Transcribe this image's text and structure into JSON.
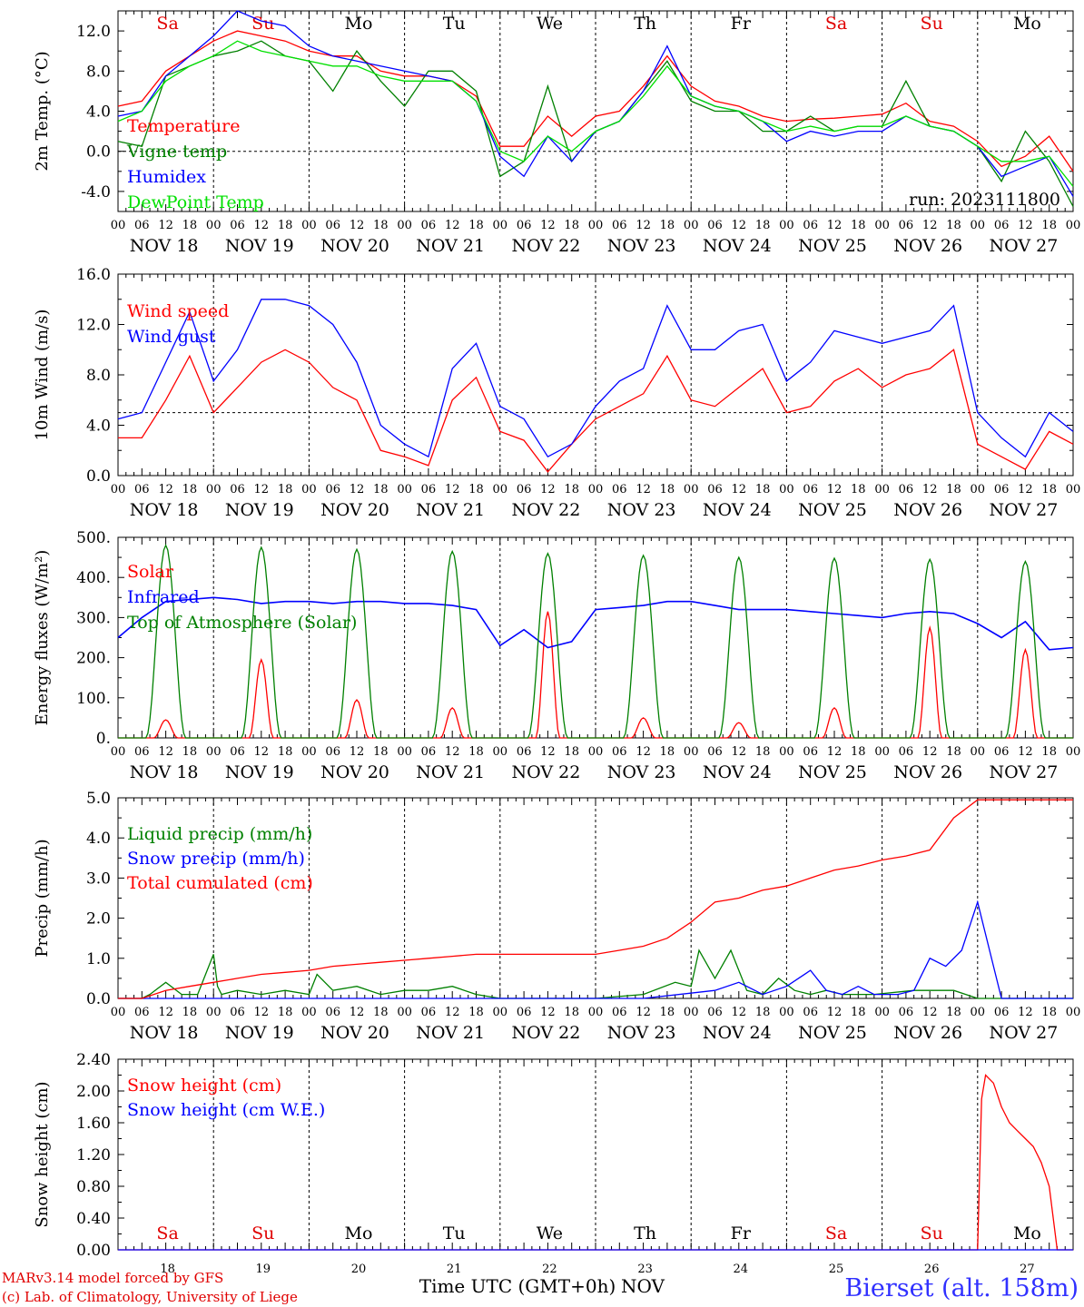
{
  "meta": {
    "run_label": "run: 2023111800",
    "footer_model": "MARv3.14 model forced by GFS",
    "footer_lab": "(c) Lab. of Climatology, University of Liege",
    "x_axis_title": "Time UTC (GMT+0h)",
    "x_axis_month": "NOV",
    "station": "Bierset (alt. 158m)"
  },
  "time_axis": {
    "days": [
      "NOV 18",
      "NOV 19",
      "NOV 20",
      "NOV 21",
      "NOV 22",
      "NOV 23",
      "NOV 24",
      "NOV 25",
      "NOV 26",
      "NOV 27"
    ],
    "hour_ticks": [
      "00",
      "06",
      "12",
      "18"
    ],
    "end_tick": "00",
    "weekday_labels": [
      "Sa",
      "Su",
      "Mo",
      "Tu",
      "We",
      "Th",
      "Fr",
      "Sa",
      "Su",
      "Mo"
    ],
    "weekday_colors": [
      "#e00000",
      "#e00000",
      "#000000",
      "#000000",
      "#000000",
      "#000000",
      "#000000",
      "#e00000",
      "#e00000",
      "#000000"
    ],
    "bottom_day_numbers": [
      "18",
      "19",
      "20",
      "21",
      "22",
      "23",
      "24",
      "25",
      "26",
      "27"
    ]
  },
  "chart_data": [
    {
      "type": "line",
      "ylabel": "2m Temp. (°C)",
      "ylim": [
        -6,
        14
      ],
      "yticks": [
        -4,
        0,
        4,
        8,
        12
      ],
      "ytick_labels": [
        "-4.0",
        "0.0",
        "4.0",
        "8.0",
        "12.0"
      ],
      "reference_line": 0,
      "x_hours": [
        0,
        240
      ],
      "series": [
        {
          "name": "Temperature",
          "color": "#ff0000",
          "x": [
            0,
            6,
            12,
            18,
            24,
            30,
            36,
            42,
            48,
            54,
            60,
            66,
            72,
            78,
            84,
            90,
            96,
            102,
            108,
            114,
            120,
            126,
            132,
            138,
            144,
            150,
            156,
            162,
            168,
            174,
            180,
            186,
            192,
            198,
            204,
            210,
            216,
            222,
            228,
            234,
            240
          ],
          "values": [
            4.5,
            5,
            8,
            9.5,
            11,
            12,
            11.5,
            11,
            10,
            9.5,
            9.5,
            8,
            7.5,
            7.5,
            7,
            5.5,
            0.5,
            0.5,
            3.5,
            1.5,
            3.5,
            4,
            6.5,
            9.5,
            6.5,
            5,
            4.5,
            3.5,
            3,
            3.2,
            3.3,
            3.5,
            3.7,
            4.8,
            3,
            2.5,
            1,
            -1.5,
            -0.5,
            1.5,
            -2
          ]
        },
        {
          "name": "Vigne temp",
          "color": "#008000",
          "x": [
            0,
            6,
            12,
            18,
            24,
            30,
            36,
            42,
            48,
            54,
            60,
            66,
            72,
            78,
            84,
            90,
            96,
            102,
            108,
            114,
            120,
            126,
            132,
            138,
            144,
            150,
            156,
            162,
            168,
            174,
            180,
            186,
            192,
            198,
            204,
            210,
            216,
            222,
            228,
            234,
            240
          ],
          "values": [
            1,
            0.5,
            7.5,
            8.5,
            9.5,
            10,
            11,
            9.5,
            9,
            6,
            10,
            7,
            4.5,
            8,
            8,
            6,
            -2.5,
            -1,
            6.5,
            -1,
            2,
            3,
            6,
            9,
            5,
            4,
            4,
            2,
            2,
            3.5,
            2,
            2.5,
            2.5,
            7,
            2.5,
            2,
            0.5,
            -3,
            2,
            -1,
            -5.5
          ]
        },
        {
          "name": "Humidex",
          "color": "#0000ff",
          "x": [
            0,
            6,
            12,
            18,
            24,
            30,
            36,
            42,
            48,
            54,
            60,
            66,
            72,
            78,
            84,
            90,
            96,
            102,
            108,
            114,
            120,
            126,
            132,
            138,
            144,
            150,
            156,
            162,
            168,
            174,
            180,
            186,
            192,
            198,
            204,
            210,
            216,
            222,
            228,
            234,
            240
          ],
          "values": [
            3.5,
            4,
            7.5,
            9.5,
            11.5,
            14,
            13,
            12.5,
            10.5,
            9.5,
            9,
            8.5,
            8,
            7.5,
            7,
            5,
            -0.5,
            -2.5,
            1.5,
            -1,
            2,
            3,
            6,
            10.5,
            5.5,
            4.5,
            4,
            3,
            1,
            2,
            1.5,
            2,
            2,
            3.5,
            2.5,
            2,
            0.5,
            -2.5,
            -1.5,
            -0.5,
            -4.5
          ]
        },
        {
          "name": "DewPoint Temp",
          "color": "#00e000",
          "x": [
            0,
            6,
            12,
            18,
            24,
            30,
            36,
            42,
            48,
            54,
            60,
            66,
            72,
            78,
            84,
            90,
            96,
            102,
            108,
            114,
            120,
            126,
            132,
            138,
            144,
            150,
            156,
            162,
            168,
            174,
            180,
            186,
            192,
            198,
            204,
            210,
            216,
            222,
            228,
            234,
            240
          ],
          "values": [
            3,
            4,
            7,
            8.5,
            9.5,
            11,
            10,
            9.5,
            9,
            8.5,
            8.5,
            7.5,
            7,
            7,
            7,
            5,
            0,
            -1,
            1.5,
            0,
            2,
            3,
            5.5,
            8.5,
            5.5,
            4.5,
            4,
            3,
            2,
            2.5,
            2,
            2.5,
            2.5,
            3.5,
            2.5,
            2,
            0.5,
            -1,
            -1,
            -0.5,
            -3.5
          ]
        }
      ]
    },
    {
      "type": "line",
      "ylabel": "10m Wind (m/s)",
      "ylim": [
        0,
        16
      ],
      "yticks": [
        0,
        4,
        8,
        12,
        16
      ],
      "ytick_labels": [
        "0.0",
        "4.0",
        "8.0",
        "12.0",
        "16.0"
      ],
      "reference_line": 5,
      "x_hours": [
        0,
        240
      ],
      "series": [
        {
          "name": "Wind speed",
          "color": "#ff0000",
          "x": [
            0,
            6,
            12,
            18,
            24,
            30,
            36,
            42,
            48,
            54,
            60,
            66,
            72,
            78,
            84,
            90,
            96,
            102,
            108,
            114,
            120,
            126,
            132,
            138,
            144,
            150,
            156,
            162,
            168,
            174,
            180,
            186,
            192,
            198,
            204,
            210,
            216,
            222,
            228,
            234,
            240
          ],
          "values": [
            3,
            3,
            6,
            9.5,
            5,
            7,
            9,
            10,
            9,
            7,
            6,
            2,
            1.5,
            0.8,
            6,
            7.8,
            3.5,
            2.8,
            0.3,
            2.5,
            4.5,
            5.5,
            6.5,
            9.5,
            6,
            5.5,
            7,
            8.5,
            5,
            5.5,
            7.5,
            8.5,
            7,
            8,
            8.5,
            10,
            2.5,
            1.5,
            0.5,
            3.5,
            2.5
          ]
        },
        {
          "name": "Wind gust",
          "color": "#0000ff",
          "x": [
            0,
            6,
            12,
            18,
            24,
            30,
            36,
            42,
            48,
            54,
            60,
            66,
            72,
            78,
            84,
            90,
            96,
            102,
            108,
            114,
            120,
            126,
            132,
            138,
            144,
            150,
            156,
            162,
            168,
            174,
            180,
            186,
            192,
            198,
            204,
            210,
            216,
            222,
            228,
            234,
            240
          ],
          "values": [
            4.5,
            5,
            9,
            13,
            7.5,
            10,
            14,
            14,
            13.5,
            12,
            9,
            4,
            2.5,
            1.5,
            8.5,
            10.5,
            5.5,
            4.5,
            1.5,
            2.5,
            5.5,
            7.5,
            8.5,
            13.5,
            10,
            10,
            11.5,
            12,
            7.5,
            9,
            11.5,
            11,
            10.5,
            11,
            11.5,
            13.5,
            5,
            3,
            1.5,
            5,
            3.5
          ]
        }
      ]
    },
    {
      "type": "line",
      "ylabel": "Energy fluxes (W/m²)",
      "ylim": [
        0,
        500
      ],
      "yticks": [
        0,
        100,
        200,
        300,
        400,
        500
      ],
      "ytick_labels": [
        "0.",
        "100.",
        "200.",
        "300.",
        "400.",
        "500."
      ],
      "x_hours": [
        0,
        240
      ],
      "series": [
        {
          "name": "Solar",
          "color": "#ff0000",
          "diurnal_peaks": [
            45,
            195,
            95,
            75,
            315,
            50,
            38,
            75,
            275,
            220
          ]
        },
        {
          "name": "Infrared",
          "color": "#0000ff",
          "x": [
            0,
            6,
            12,
            18,
            24,
            30,
            36,
            42,
            48,
            54,
            60,
            66,
            72,
            78,
            84,
            90,
            96,
            102,
            108,
            114,
            120,
            126,
            132,
            138,
            144,
            150,
            156,
            162,
            168,
            174,
            180,
            186,
            192,
            198,
            204,
            210,
            216,
            222,
            228,
            234,
            240
          ],
          "values": [
            250,
            300,
            340,
            345,
            350,
            345,
            335,
            340,
            340,
            335,
            340,
            340,
            335,
            335,
            330,
            320,
            230,
            270,
            225,
            240,
            320,
            325,
            330,
            340,
            340,
            330,
            320,
            320,
            320,
            315,
            310,
            305,
            300,
            310,
            315,
            310,
            285,
            250,
            290,
            220,
            225
          ]
        },
        {
          "name": "Top of Atmosphere (Solar)",
          "color": "#008000",
          "diurnal_peaks": [
            480,
            475,
            470,
            465,
            460,
            455,
            450,
            448,
            445,
            440
          ]
        }
      ]
    },
    {
      "type": "line",
      "ylabel": "Precip (mm/h)",
      "ylim": [
        0,
        5
      ],
      "yticks": [
        0,
        1,
        2,
        3,
        4,
        5
      ],
      "ytick_labels": [
        "0.0",
        "1.0",
        "2.0",
        "3.0",
        "4.0",
        "5.0"
      ],
      "x_hours": [
        0,
        240
      ],
      "series": [
        {
          "name": "Liquid precip (mm/h)",
          "color": "#008000",
          "x": [
            0,
            6,
            8,
            12,
            16,
            20,
            24,
            25,
            26,
            30,
            36,
            42,
            48,
            50,
            54,
            60,
            66,
            72,
            78,
            84,
            90,
            96,
            108,
            120,
            132,
            140,
            144,
            146,
            150,
            154,
            158,
            162,
            166,
            170,
            174,
            178,
            182,
            190,
            200,
            210,
            216,
            222,
            228,
            234,
            240
          ],
          "values": [
            0,
            0,
            0.1,
            0.4,
            0.1,
            0.1,
            1.1,
            0.3,
            0.1,
            0.2,
            0.1,
            0.2,
            0.1,
            0.6,
            0.2,
            0.3,
            0.1,
            0.2,
            0.2,
            0.3,
            0.1,
            0,
            0,
            0,
            0.1,
            0.4,
            0.3,
            1.2,
            0.5,
            1.2,
            0.2,
            0.1,
            0.5,
            0.2,
            0.1,
            0.2,
            0.1,
            0.1,
            0.2,
            0.2,
            0,
            0,
            0,
            0,
            0
          ]
        },
        {
          "name": "Snow precip (mm/h)",
          "color": "#0000ff",
          "x": [
            0,
            132,
            150,
            156,
            162,
            168,
            174,
            178,
            182,
            186,
            190,
            196,
            200,
            204,
            208,
            212,
            216,
            222,
            228,
            234,
            240
          ],
          "values": [
            0,
            0,
            0.2,
            0.4,
            0.1,
            0.3,
            0.7,
            0.2,
            0.1,
            0.3,
            0.1,
            0.1,
            0.2,
            1,
            0.8,
            1.2,
            2.4,
            0,
            0,
            0,
            0
          ]
        },
        {
          "name": "Total cumulated (cm)",
          "color": "#ff0000",
          "x": [
            0,
            6,
            12,
            18,
            24,
            30,
            36,
            42,
            48,
            54,
            60,
            66,
            72,
            78,
            84,
            90,
            96,
            102,
            108,
            114,
            120,
            126,
            132,
            138,
            144,
            150,
            156,
            162,
            168,
            174,
            180,
            186,
            192,
            198,
            204,
            210,
            216,
            222,
            228,
            234,
            240
          ],
          "values": [
            0,
            0,
            0.2,
            0.3,
            0.4,
            0.5,
            0.6,
            0.65,
            0.7,
            0.8,
            0.85,
            0.9,
            0.95,
            1,
            1.05,
            1.1,
            1.1,
            1.1,
            1.1,
            1.1,
            1.1,
            1.2,
            1.3,
            1.5,
            1.9,
            2.4,
            2.5,
            2.7,
            2.8,
            3,
            3.2,
            3.3,
            3.45,
            3.55,
            3.7,
            4.5,
            4.95,
            4.95,
            4.95,
            4.95,
            4.95
          ]
        }
      ]
    },
    {
      "type": "line",
      "ylabel": "Snow height (cm)",
      "ylim": [
        0,
        2.4
      ],
      "yticks": [
        0,
        0.4,
        0.8,
        1.2,
        1.6,
        2.0,
        2.4
      ],
      "ytick_labels": [
        "0.00",
        "0.40",
        "0.80",
        "1.20",
        "1.60",
        "2.00",
        "2.40"
      ],
      "x_hours": [
        0,
        240
      ],
      "series": [
        {
          "name": "Snow height (cm)",
          "color": "#ff0000",
          "x": [
            0,
            216,
            217,
            218,
            220,
            222,
            224,
            226,
            228,
            230,
            232,
            234,
            236,
            240
          ],
          "values": [
            0,
            0,
            1.9,
            2.2,
            2.1,
            1.8,
            1.6,
            1.5,
            1.4,
            1.3,
            1.1,
            0.8,
            0,
            0
          ]
        },
        {
          "name": "Snow height (cm W.E.)",
          "color": "#0000ff",
          "x": [
            0,
            240
          ],
          "values": [
            0,
            0
          ]
        }
      ]
    }
  ]
}
